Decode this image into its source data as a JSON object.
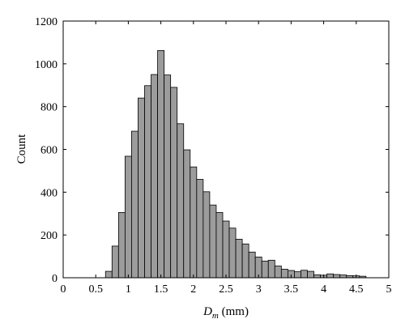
{
  "chart_data": {
    "type": "bar",
    "title": "",
    "xlabel": {
      "symbol": "D",
      "subscript": "m",
      "unit": " (mm)"
    },
    "ylabel": "Count",
    "xlim": [
      0,
      5
    ],
    "ylim": [
      0,
      1200
    ],
    "xticks": [
      "0",
      "0.5",
      "1",
      "1.5",
      "2",
      "2.5",
      "3",
      "3.5",
      "4",
      "4.5",
      "5"
    ],
    "yticks": [
      "0",
      "200",
      "400",
      "600",
      "800",
      "1000",
      "1200"
    ],
    "grid": false,
    "legend": false,
    "colors": {
      "bar_fill": "#9c9c9c",
      "bar_stroke": "#000000",
      "axis": "#000000"
    },
    "bin_width": 0.1,
    "bins": [
      {
        "start": 0.65,
        "count": 30
      },
      {
        "start": 0.75,
        "count": 148
      },
      {
        "start": 0.85,
        "count": 305
      },
      {
        "start": 0.95,
        "count": 568
      },
      {
        "start": 1.05,
        "count": 685
      },
      {
        "start": 1.15,
        "count": 840
      },
      {
        "start": 1.25,
        "count": 898
      },
      {
        "start": 1.35,
        "count": 950
      },
      {
        "start": 1.45,
        "count": 1062
      },
      {
        "start": 1.55,
        "count": 948
      },
      {
        "start": 1.65,
        "count": 890
      },
      {
        "start": 1.75,
        "count": 720
      },
      {
        "start": 1.85,
        "count": 598
      },
      {
        "start": 1.95,
        "count": 518
      },
      {
        "start": 2.05,
        "count": 460
      },
      {
        "start": 2.15,
        "count": 402
      },
      {
        "start": 2.25,
        "count": 340
      },
      {
        "start": 2.35,
        "count": 305
      },
      {
        "start": 2.45,
        "count": 265
      },
      {
        "start": 2.55,
        "count": 232
      },
      {
        "start": 2.65,
        "count": 180
      },
      {
        "start": 2.75,
        "count": 158
      },
      {
        "start": 2.85,
        "count": 120
      },
      {
        "start": 2.95,
        "count": 97
      },
      {
        "start": 3.05,
        "count": 78
      },
      {
        "start": 3.15,
        "count": 82
      },
      {
        "start": 3.25,
        "count": 55
      },
      {
        "start": 3.35,
        "count": 40
      },
      {
        "start": 3.45,
        "count": 34
      },
      {
        "start": 3.55,
        "count": 28
      },
      {
        "start": 3.65,
        "count": 35
      },
      {
        "start": 3.75,
        "count": 30
      },
      {
        "start": 3.85,
        "count": 14
      },
      {
        "start": 3.95,
        "count": 12
      },
      {
        "start": 4.05,
        "count": 18
      },
      {
        "start": 4.15,
        "count": 15
      },
      {
        "start": 4.25,
        "count": 13
      },
      {
        "start": 4.35,
        "count": 10
      },
      {
        "start": 4.45,
        "count": 9
      },
      {
        "start": 4.55,
        "count": 7
      }
    ]
  }
}
